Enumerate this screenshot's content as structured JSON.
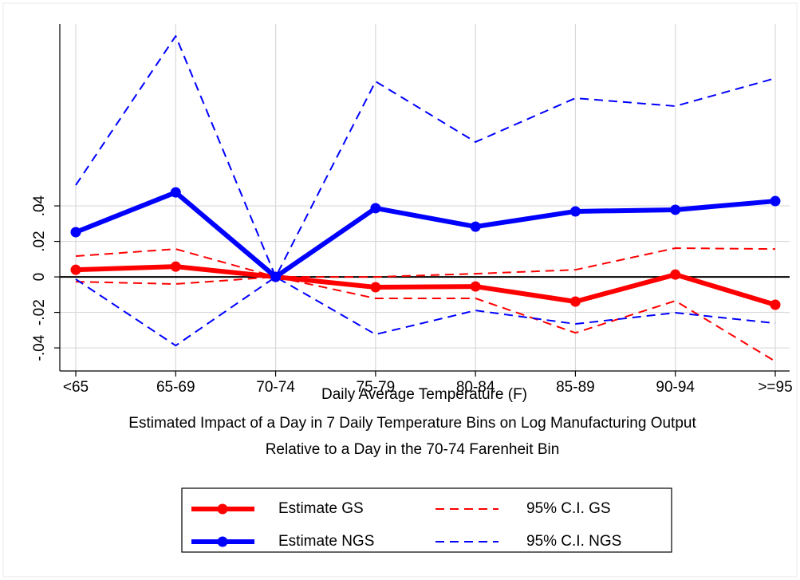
{
  "chart_data": {
    "type": "line",
    "x_label": "Daily Average Temperature (F)",
    "caption": [
      "Estimated Impact of a Day in 7 Daily Temperature Bins on Log Manufacturing Output",
      "Relative to a Day in the 70-74 Farenheit Bin"
    ],
    "categories": [
      "<65",
      "65-69",
      "70-74",
      "75-79",
      "80-84",
      "85-89",
      "90-94",
      ">=95"
    ],
    "ylim": [
      -0.053,
      0.1425
    ],
    "yticks": [
      {
        "value": -0.04,
        "label": "-.04"
      },
      {
        "value": -0.02,
        "label": "-.02"
      },
      0,
      {
        "value": 0.02,
        "label": ".02"
      },
      {
        "value": 0.04,
        "label": ".04"
      }
    ],
    "grid": true,
    "zero_line": true,
    "series": [
      {
        "name": "Estimate GS",
        "color": "#ff0000",
        "style": "solid",
        "values": [
          0.004,
          0.0058,
          0,
          -0.0058,
          -0.0054,
          -0.0139,
          0.0013,
          -0.0157
        ]
      },
      {
        "name": "Estimate NGS",
        "color": "#0000ff",
        "style": "solid",
        "values": [
          0.0252,
          0.0476,
          0,
          0.0387,
          0.0283,
          0.0369,
          0.0378,
          0.0427
        ]
      },
      {
        "name": "95% C.I. GS",
        "color": "#ff0000",
        "style": "dashed",
        "upper": [
          0.0117,
          0.0157,
          0,
          0,
          0.0018,
          0.004,
          0.0162,
          0.0157
        ],
        "lower": [
          -0.0027,
          -0.004,
          0,
          -0.0121,
          -0.0121,
          -0.0315,
          -0.0135,
          -0.0476
        ]
      },
      {
        "name": "95% C.I. NGS",
        "color": "#0000ff",
        "style": "dashed",
        "upper": [
          0.0517,
          0.1357,
          0,
          0.1101,
          0.076,
          0.1007,
          0.0962,
          0.1119
        ],
        "lower": [
          -0.0013,
          -0.0387,
          0,
          -0.0324,
          -0.0189,
          -0.0265,
          -0.0202,
          -0.0261
        ]
      }
    ]
  }
}
